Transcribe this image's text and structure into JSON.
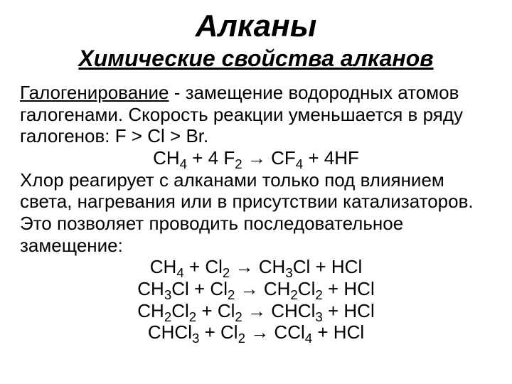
{
  "title": "Алканы",
  "subtitle": "Химические свойства алканов",
  "paragraph1_term": "Галогенирование",
  "paragraph1_rest": " - замещение водородных атомов галогенами. Скорость реакции уменьшается в ряду галогенов: F > Cl > Br.",
  "eq1_text": "CH4 + 4 F2 → CF4 + 4HF",
  "paragraph2": "Хлор реагирует с алканами только под влиянием света, нагревания или в присутствии катализаторов. Это позволяет проводить последовательное замещение:",
  "eq2_text": "CH4 + Cl2 → CH3Cl + HCl",
  "eq3_text": "CH3Cl + Cl2 → CH2Cl2 + HCl",
  "eq4_text": "CH2Cl2 + Cl2 → CHCl3 + HCl",
  "eq5_text": "CHCl3 + Cl2 → CCl4 + HCl",
  "colors": {
    "text": "#000000",
    "background": "#ffffff"
  },
  "fonts": {
    "family": "Arial",
    "title_size_pt": 33,
    "subtitle_size_pt": 24,
    "body_size_pt": 20
  }
}
